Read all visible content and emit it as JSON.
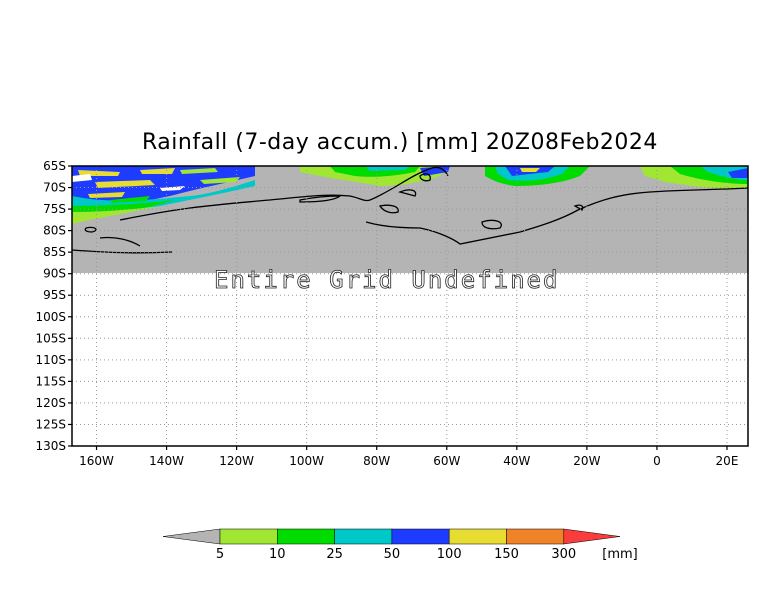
{
  "title": "Rainfall (7-day accum.) [mm] 20Z08Feb2024",
  "map": {
    "lat_labels": [
      "65S",
      "70S",
      "75S",
      "80S",
      "85S",
      "90S",
      "95S",
      "100S",
      "105S",
      "110S",
      "115S",
      "120S",
      "125S",
      "130S"
    ],
    "lon_labels": [
      "160W",
      "140W",
      "120W",
      "100W",
      "80W",
      "60W",
      "40W",
      "20W",
      "0",
      "20E"
    ],
    "lon_values": [
      -160,
      -140,
      -120,
      -100,
      -80,
      -60,
      -40,
      -20,
      0,
      20
    ],
    "lat_values": [
      -65,
      -70,
      -75,
      -80,
      -85,
      -90,
      -95,
      -100,
      -105,
      -110,
      -115,
      -120,
      -125,
      -130
    ],
    "lon_range": [
      -167,
      26
    ],
    "lat_range": [
      -65,
      -130
    ],
    "undefined_message": "Entire Grid Undefined",
    "undefined_color": "#b4b4b4",
    "grid": "dotted"
  },
  "colorbar": {
    "labels": [
      "5",
      "10",
      "25",
      "50",
      "100",
      "150",
      "300"
    ],
    "unit": "[mm]",
    "colors": [
      "#b4b4b4",
      "#a0e632",
      "#00dc00",
      "#00c8c8",
      "#1e3cff",
      "#e6dc32",
      "#f08228",
      "#fa3c3c"
    ]
  }
}
